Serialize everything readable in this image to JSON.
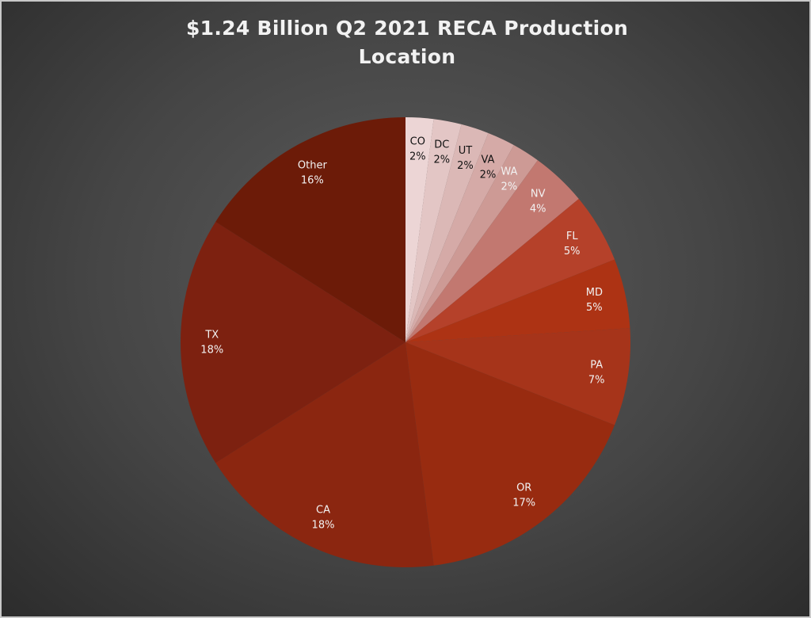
{
  "chart_data": {
    "type": "pie",
    "title": "$1.24 Billion Q2 2021 RECA Production Location",
    "categories": [
      "CO",
      "DC",
      "UT",
      "VA",
      "WA",
      "NV",
      "FL",
      "MD",
      "PA",
      "OR",
      "CA",
      "TX",
      "Other"
    ],
    "values": [
      2,
      2,
      2,
      2,
      2,
      4,
      5,
      5,
      7,
      17,
      18,
      18,
      16
    ],
    "value_labels": [
      "2%",
      "2%",
      "2%",
      "2%",
      "2%",
      "4%",
      "5%",
      "5%",
      "7%",
      "17%",
      "18%",
      "18%",
      "16%"
    ],
    "colors": [
      "#ecd5d5",
      "#e3c6c5",
      "#dbb8b6",
      "#d5aaa7",
      "#cd9a95",
      "#c27870",
      "#b5412a",
      "#ad3314",
      "#a6341a",
      "#982b10",
      "#8b2610",
      "#7d2110",
      "#6c1b08"
    ]
  }
}
